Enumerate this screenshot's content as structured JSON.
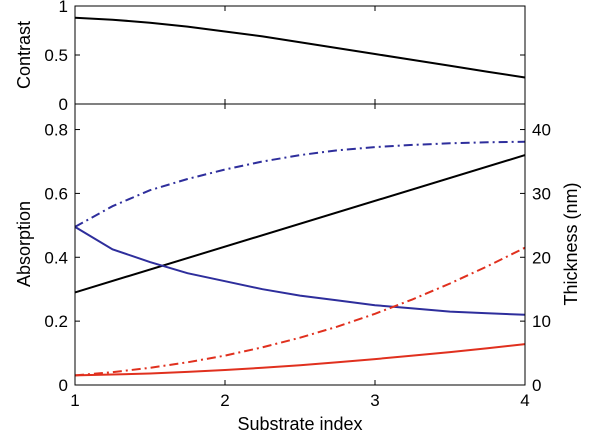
{
  "chart_data": [
    {
      "panel": "contrast",
      "type": "line",
      "xlabel": "",
      "ylabel": "Contrast",
      "xlim": [
        1,
        4
      ],
      "ylim": [
        0,
        1
      ],
      "xticks": [
        1,
        2,
        3,
        4
      ],
      "yticks": [
        0,
        0.5,
        1
      ],
      "ytick_labels": [
        "0",
        "0.5",
        "1"
      ],
      "grid": false,
      "series": [
        {
          "color": "#000000",
          "style": "solid",
          "axis": "left",
          "x": [
            1,
            1.25,
            1.5,
            1.75,
            2,
            2.25,
            2.5,
            2.75,
            3,
            3.25,
            3.5,
            3.75,
            4
          ],
          "y": [
            0.88,
            0.86,
            0.83,
            0.79,
            0.74,
            0.69,
            0.63,
            0.57,
            0.51,
            0.45,
            0.39,
            0.33,
            0.27
          ]
        }
      ]
    },
    {
      "panel": "absorption",
      "type": "line",
      "xlabel": "Substrate index",
      "ylabel": "Absorption",
      "y2label": "Thickness (nm)",
      "xlim": [
        1,
        4
      ],
      "ylim": [
        0,
        0.88
      ],
      "y2lim": [
        0,
        44
      ],
      "xticks": [
        1,
        2,
        3,
        4
      ],
      "yticks": [
        0,
        0.2,
        0.4,
        0.6,
        0.8
      ],
      "ytick_labels": [
        "0",
        "0.2",
        "0.4",
        "0.6",
        "0.8"
      ],
      "y2ticks": [
        0,
        10,
        20,
        30,
        40
      ],
      "y2tick_labels": [
        "0",
        "10",
        "20",
        "30",
        "40"
      ],
      "grid": false,
      "series": [
        {
          "color": "#000000",
          "style": "solid",
          "axis": "right",
          "x": [
            1,
            4
          ],
          "y": [
            14.5,
            36
          ]
        },
        {
          "color": "#2e2e9c",
          "style": "solid",
          "axis": "left",
          "x": [
            1,
            1.25,
            1.5,
            1.75,
            2,
            2.25,
            2.5,
            2.75,
            3,
            3.25,
            3.5,
            3.75,
            4
          ],
          "y": [
            0.495,
            0.425,
            0.385,
            0.35,
            0.325,
            0.3,
            0.28,
            0.265,
            0.25,
            0.24,
            0.23,
            0.225,
            0.22
          ]
        },
        {
          "color": "#2e2e9c",
          "style": "dashdot",
          "axis": "left",
          "x": [
            1,
            1.25,
            1.5,
            1.75,
            2,
            2.25,
            2.5,
            2.75,
            3,
            3.25,
            3.5,
            3.75,
            4
          ],
          "y": [
            0.495,
            0.56,
            0.61,
            0.645,
            0.675,
            0.7,
            0.72,
            0.735,
            0.745,
            0.752,
            0.757,
            0.76,
            0.762
          ]
        },
        {
          "color": "#e0301e",
          "style": "solid",
          "axis": "left",
          "x": [
            1,
            1.25,
            1.5,
            1.75,
            2,
            2.25,
            2.5,
            2.75,
            3,
            3.25,
            3.5,
            3.75,
            4
          ],
          "y": [
            0.03,
            0.033,
            0.036,
            0.041,
            0.047,
            0.054,
            0.062,
            0.071,
            0.081,
            0.092,
            0.103,
            0.115,
            0.128
          ]
        },
        {
          "color": "#e0301e",
          "style": "dashdot",
          "axis": "left",
          "x": [
            1,
            1.25,
            1.5,
            1.75,
            2,
            2.25,
            2.5,
            2.75,
            3,
            3.25,
            3.5,
            3.75,
            4
          ],
          "y": [
            0.03,
            0.04,
            0.054,
            0.071,
            0.092,
            0.118,
            0.148,
            0.183,
            0.223,
            0.268,
            0.318,
            0.372,
            0.43
          ]
        }
      ]
    }
  ]
}
